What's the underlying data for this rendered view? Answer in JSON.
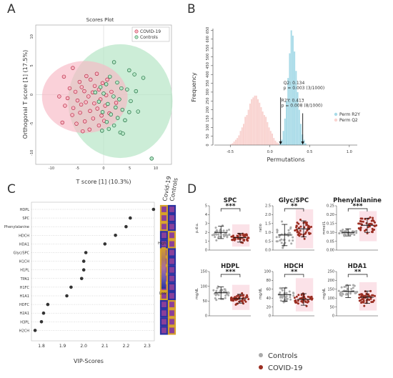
{
  "panels": {
    "a": {
      "letter": "A"
    },
    "b": {
      "letter": "B"
    },
    "c": {
      "letter": "C"
    },
    "d": {
      "letter": "D"
    }
  },
  "colors": {
    "covid": "#e8607a",
    "controls": "#3aa86a",
    "covid_fill": "#f7b8c4",
    "controls_fill": "#b6e6c6",
    "perm_r2y": "#a9dbe8",
    "perm_q2": "#f9d3d0",
    "dot": "#333333",
    "heat_high": "#d6a12a",
    "heat_low": "#2a32a0",
    "swarm_covid": "#9b2e22",
    "swarm_controls": "#aaaaaa"
  },
  "chart_data": [
    {
      "type": "scatter",
      "title": "Scores Plot",
      "xlabel": "T score [1] (10.3%)",
      "ylabel": "Orthogonal T score [1] (17.5%)",
      "xticks": [
        "-10",
        "-5",
        "0",
        "5",
        "10"
      ],
      "yticks": [
        "10",
        "5",
        "0",
        "-5",
        "-10"
      ],
      "xlim": [
        -13,
        13
      ],
      "ylim": [
        -12,
        12
      ],
      "legend": [
        "COVID-19",
        "Controls"
      ],
      "legend_position": "top-right",
      "series": [
        {
          "name": "COVID-19",
          "points": [
            [
              -7.6,
              3.1
            ],
            [
              -5.9,
              4.6
            ],
            [
              -4.6,
              2.2
            ],
            [
              -3.3,
              3.2
            ],
            [
              -2.5,
              2.6
            ],
            [
              -4.2,
              1.3
            ],
            [
              -6.5,
              1.1
            ],
            [
              -5.4,
              0.5
            ],
            [
              -3.7,
              0.6
            ],
            [
              -1.7,
              1.5
            ],
            [
              -8.5,
              -0.3
            ],
            [
              -6.9,
              -0.6
            ],
            [
              -5.0,
              -1.0
            ],
            [
              -2.9,
              -0.3
            ],
            [
              -2.1,
              0.4
            ],
            [
              -0.9,
              0.9
            ],
            [
              -0.2,
              2.0
            ],
            [
              -7.4,
              -1.9
            ],
            [
              -5.8,
              -2.3
            ],
            [
              -4.3,
              -1.7
            ],
            [
              -3.4,
              -1.3
            ],
            [
              -1.8,
              -1.5
            ],
            [
              -0.6,
              -0.8
            ],
            [
              0.5,
              -0.1
            ],
            [
              -6.0,
              -3.5
            ],
            [
              -4.5,
              -3.1
            ],
            [
              -2.6,
              -2.8
            ],
            [
              -1.2,
              -2.4
            ],
            [
              0.3,
              -1.9
            ],
            [
              -3.6,
              -4.6
            ],
            [
              -2.0,
              -4.1
            ],
            [
              -0.4,
              -3.6
            ],
            [
              1.1,
              -3.2
            ],
            [
              -5.2,
              -5.0
            ],
            [
              -0.9,
              -5.3
            ],
            [
              1.5,
              0.5
            ],
            [
              -7.9,
              -4.8
            ],
            [
              -2.7,
              -6.0
            ],
            [
              0.1,
              -4.5
            ],
            [
              -4.0,
              -6.3
            ],
            [
              2.4,
              -1.4
            ],
            [
              -1.3,
              3.6
            ],
            [
              0.7,
              2.6
            ]
          ]
        },
        {
          "name": "Controls",
          "points": [
            [
              2.0,
              5.6
            ],
            [
              4.9,
              4.2
            ],
            [
              5.9,
              3.5
            ],
            [
              7.6,
              2.9
            ],
            [
              1.2,
              3.1
            ],
            [
              2.6,
              2.1
            ],
            [
              0.5,
              1.8
            ],
            [
              -0.6,
              1.3
            ],
            [
              3.4,
              1.1
            ],
            [
              4.5,
              0.9
            ],
            [
              6.2,
              0.6
            ],
            [
              -1.6,
              0.4
            ],
            [
              0.0,
              0.2
            ],
            [
              1.9,
              -0.3
            ],
            [
              3.0,
              -0.8
            ],
            [
              5.2,
              -1.1
            ],
            [
              -0.9,
              -1.2
            ],
            [
              0.8,
              -1.6
            ],
            [
              2.3,
              -2.2
            ],
            [
              3.6,
              -2.6
            ],
            [
              4.9,
              -3.0
            ],
            [
              6.6,
              -2.9
            ],
            [
              -0.2,
              -3.0
            ],
            [
              1.4,
              -3.4
            ],
            [
              2.7,
              -4.0
            ],
            [
              4.1,
              -4.4
            ],
            [
              0.6,
              -4.7
            ],
            [
              2.0,
              -5.3
            ],
            [
              3.2,
              -6.5
            ],
            [
              3.7,
              -6.7
            ],
            [
              -0.3,
              -6.2
            ],
            [
              1.0,
              -5.9
            ],
            [
              9.2,
              -11.0
            ]
          ]
        }
      ]
    },
    {
      "type": "bar",
      "xlabel": "Permutations",
      "ylabel": "Frequency",
      "xticks": [
        "-0.5",
        "0.0",
        "0.5",
        "1.0"
      ],
      "yticks": [
        "0",
        "50",
        "100",
        "150",
        "200",
        "250",
        "300",
        "350",
        "400",
        "450",
        "500",
        "550",
        "600",
        "650"
      ],
      "xlim": [
        -0.7,
        1.1
      ],
      "ylim": [
        0,
        660
      ],
      "legend": [
        "Perm R2Y",
        "Perm Q2"
      ],
      "legend_position": "right",
      "bin_width": 0.02,
      "series": [
        {
          "name": "Perm Q2",
          "x": [
            -0.49,
            -0.47,
            -0.45,
            -0.43,
            -0.41,
            -0.39,
            -0.37,
            -0.35,
            -0.33,
            -0.31,
            -0.29,
            -0.27,
            -0.25,
            -0.23,
            -0.21,
            -0.19,
            -0.17,
            -0.15,
            -0.13,
            -0.11,
            -0.09,
            -0.07,
            -0.05,
            -0.03,
            -0.01,
            0.01,
            0.03,
            0.05,
            0.07,
            0.09,
            0.11
          ],
          "values": [
            5,
            10,
            20,
            30,
            40,
            55,
            80,
            100,
            120,
            160,
            170,
            200,
            235,
            260,
            270,
            280,
            280,
            260,
            240,
            215,
            190,
            170,
            160,
            130,
            100,
            80,
            65,
            40,
            25,
            15,
            10
          ]
        },
        {
          "name": "Perm R2Y",
          "x": [
            0.13,
            0.15,
            0.17,
            0.19,
            0.21,
            0.23,
            0.25,
            0.27,
            0.29,
            0.31,
            0.33,
            0.35,
            0.37,
            0.39,
            0.41,
            0.43,
            0.45
          ],
          "values": [
            10,
            30,
            80,
            150,
            250,
            380,
            520,
            650,
            620,
            530,
            420,
            300,
            200,
            120,
            60,
            30,
            10
          ]
        }
      ],
      "annotations": [
        {
          "label": "Q2: 0.134",
          "sub": "p = 0.003 (3/1000)",
          "x": 0.134
        },
        {
          "label": "R2Y: 0.413",
          "sub": "p = 0.008 (8/1000)",
          "x": 0.413
        }
      ]
    },
    {
      "type": "scatter",
      "xlabel": "VIP-Scores",
      "xticks": [
        "1.8",
        "1.9",
        "2.0",
        "2.1",
        "2.2",
        "2.3"
      ],
      "xlim": [
        1.75,
        2.35
      ],
      "column_labels": [
        "Covid-19",
        "Controls"
      ],
      "colorbar": {
        "high": "High",
        "low": "Low"
      },
      "categories": [
        "HDPL",
        "SPC",
        "Phenylalanine",
        "HDCH",
        "HDA1",
        "Glyc/SPC",
        "H1CH",
        "H1PL",
        "TPA1",
        "H1FC",
        "H1A1",
        "HDFC",
        "H2A1",
        "H3PL",
        "H2CH"
      ],
      "values": [
        2.33,
        2.22,
        2.2,
        2.15,
        2.1,
        2.01,
        2.0,
        2.0,
        1.99,
        1.94,
        1.92,
        1.83,
        1.81,
        1.8,
        1.77
      ],
      "heat_covid": [
        "high",
        "high",
        "high",
        "low",
        "low",
        "high",
        "high",
        "high",
        "high",
        "high",
        "high",
        "low",
        "low",
        "low",
        "low"
      ],
      "heat_controls": [
        "low",
        "low",
        "low",
        "high",
        "high",
        "low",
        "low",
        "low",
        "low",
        "low",
        "low",
        "high",
        "high",
        "high",
        "high"
      ]
    },
    {
      "type": "scatter",
      "legend": [
        "Controls",
        "COVID-19"
      ],
      "legend_position": "bottom",
      "panels": [
        {
          "title": "SPC",
          "ylabel": "p.d.u.",
          "yticks": [
            "0",
            "1",
            "2",
            "3",
            "4",
            "5"
          ],
          "ylim": [
            0,
            5
          ],
          "sig": "***",
          "controls_mean": 2.0,
          "controls_sd": 0.7,
          "covid_mean": 1.4,
          "covid_sd": 0.5,
          "controls_range": [
            0.6,
            4.2
          ],
          "covid_range": [
            0.4,
            2.9
          ]
        },
        {
          "title": "Glyc/SPC",
          "ylabel": "ratio",
          "yticks": [
            "0.0",
            "0.5",
            "1.0",
            "1.5",
            "2.0",
            "2.5"
          ],
          "ylim": [
            0,
            2.5
          ],
          "sig": "**",
          "controls_mean": 0.85,
          "controls_sd": 0.6,
          "covid_mean": 1.2,
          "covid_sd": 0.45,
          "controls_range": [
            0.1,
            2.0
          ],
          "covid_range": [
            0.1,
            2.3
          ]
        },
        {
          "title": "Phenylalanine",
          "ylabel": "mmol/L",
          "yticks": [
            "0.00",
            "0.05",
            "0.10",
            "0.15",
            "0.20",
            "0.25"
          ],
          "ylim": [
            0,
            0.25
          ],
          "sig": "***",
          "controls_mean": 0.1,
          "controls_sd": 0.02,
          "covid_mean": 0.14,
          "covid_sd": 0.04,
          "controls_range": [
            0.06,
            0.18
          ],
          "covid_range": [
            0.05,
            0.22
          ]
        },
        {
          "title": "HDPL",
          "ylabel": "mg/dL",
          "yticks": [
            "0",
            "50",
            "100",
            "150"
          ],
          "ylim": [
            0,
            150
          ],
          "sig": "***",
          "controls_mean": 78,
          "controls_sd": 20,
          "covid_mean": 58,
          "covid_sd": 15,
          "controls_range": [
            35,
            130
          ],
          "covid_range": [
            20,
            105
          ]
        },
        {
          "title": "HDCH",
          "ylabel": "mg/dL",
          "yticks": [
            "0",
            "20",
            "40",
            "60",
            "80",
            "100"
          ],
          "ylim": [
            0,
            100
          ],
          "sig": "**",
          "controls_mean": 48,
          "controls_sd": 15,
          "covid_mean": 37,
          "covid_sd": 13,
          "controls_range": [
            15,
            85
          ],
          "covid_range": [
            10,
            85
          ]
        },
        {
          "title": "HDA1",
          "ylabel": "mg/dL",
          "yticks": [
            "0",
            "50",
            "100",
            "150",
            "200",
            "250"
          ],
          "ylim": [
            0,
            250
          ],
          "sig": "**",
          "controls_mean": 138,
          "controls_sd": 35,
          "covid_mean": 105,
          "covid_sd": 35,
          "controls_range": [
            55,
            210
          ],
          "covid_range": [
            30,
            190
          ]
        }
      ]
    }
  ]
}
